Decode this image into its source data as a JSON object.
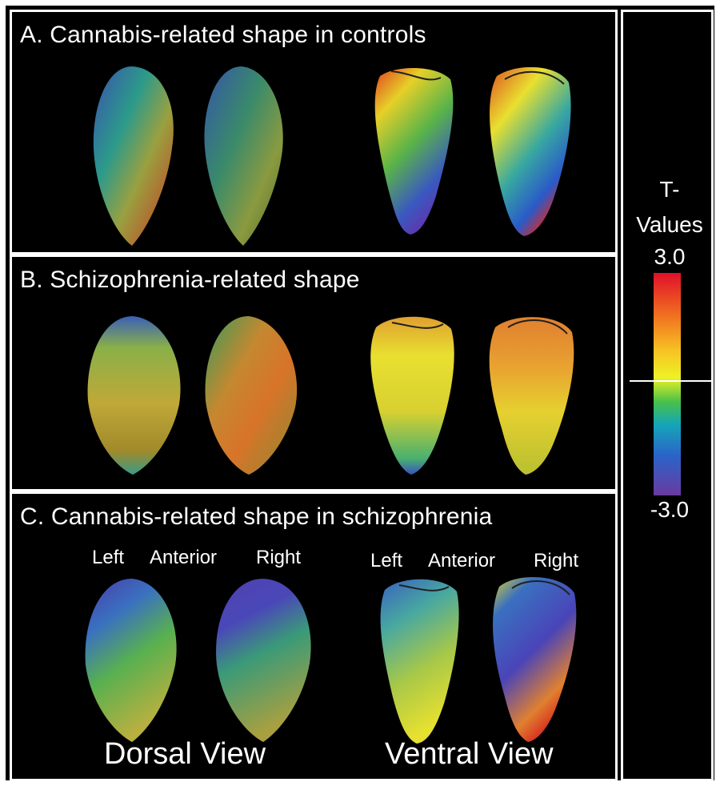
{
  "panels": {
    "a_title": "A. Cannabis-related shape in controls",
    "b_title": "B. Schizophrenia-related shape",
    "c_title": "C. Cannabis-related shape in schizophrenia"
  },
  "orientation": {
    "dorsal": {
      "left": "Left",
      "anterior": "Anterior",
      "right": "Right"
    },
    "ventral": {
      "left": "Left",
      "anterior": "Anterior",
      "right": "Right"
    }
  },
  "views": {
    "dorsal": "Dorsal View",
    "ventral": "Ventral View"
  },
  "legend": {
    "title_line1": "T-",
    "title_line2": "Values",
    "max": "3.0",
    "min": "-3.0",
    "colors": [
      "#e0102a",
      "#f06a20",
      "#f7c323",
      "#eef225",
      "#48c04a",
      "#15a6b8",
      "#2a64c8",
      "#6a3aa0"
    ]
  }
}
